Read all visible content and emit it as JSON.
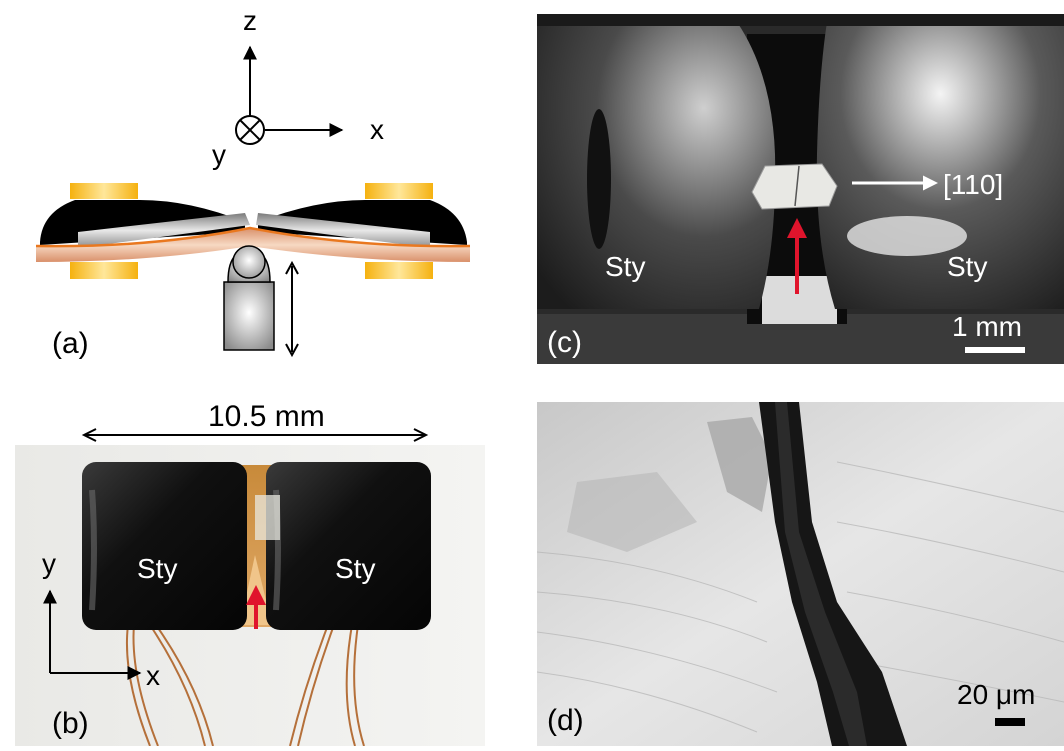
{
  "panels": {
    "a": {
      "label": "(a)",
      "axes": {
        "z": "z",
        "x": "x",
        "y": "y"
      }
    },
    "b": {
      "label": "(b)",
      "dimension": "10.5 mm",
      "sty_left": "Sty",
      "sty_right": "Sty",
      "axes": {
        "x": "x",
        "y": "y"
      }
    },
    "c": {
      "label": "(c)",
      "direction": "[110]",
      "sty_left": "Sty",
      "sty_right": "Sty",
      "scale": "1 mm"
    },
    "d": {
      "label": "(d)",
      "scale": "20 μm"
    }
  },
  "colors": {
    "arrow_red": "#e0142c",
    "gold": "#f2b21e",
    "copper": "#e6a57a",
    "orange_line": "#e9781f"
  }
}
